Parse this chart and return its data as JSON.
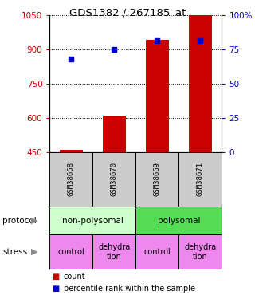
{
  "title": "GDS1382 / 267185_at",
  "samples": [
    "GSM38668",
    "GSM38670",
    "GSM38669",
    "GSM38671"
  ],
  "bar_values": [
    462,
    612,
    942,
    1048
  ],
  "bar_bottom": 450,
  "percentile_values": [
    858,
    900,
    937,
    937
  ],
  "bar_color": "#cc0000",
  "dot_color": "#0000cc",
  "ylim_left": [
    450,
    1050
  ],
  "ylim_right": [
    0,
    100
  ],
  "yticks_left": [
    450,
    600,
    750,
    900,
    1050
  ],
  "yticks_right": [
    0,
    25,
    50,
    75,
    100
  ],
  "ytick_labels_right": [
    "0",
    "25",
    "50",
    "75",
    "100%"
  ],
  "protocol_labels": [
    "non-polysomal",
    "polysomal"
  ],
  "protocol_color_left": "#ccffcc",
  "protocol_color_right": "#55dd55",
  "stress_labels": [
    "control",
    "dehydra\ntion",
    "control",
    "dehydra\ntion"
  ],
  "stress_color": "#ee88ee",
  "sample_bg_color": "#cccccc",
  "legend_items": [
    "count",
    "percentile rank within the sample"
  ],
  "left_tick_color": "#cc0000",
  "right_tick_color": "#0000cc",
  "bar_width": 0.55,
  "x_positions": [
    0,
    1,
    2,
    3
  ]
}
